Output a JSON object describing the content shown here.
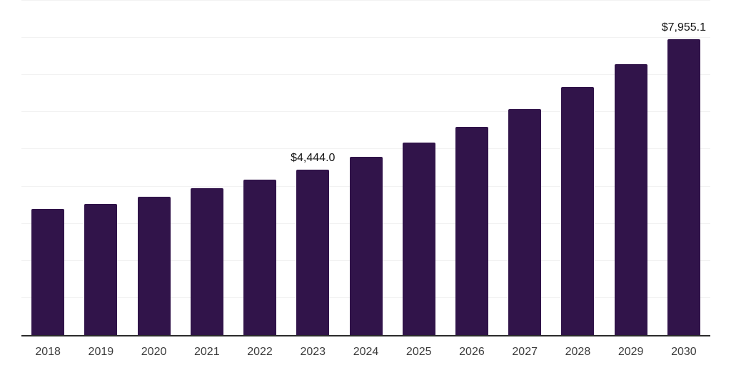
{
  "chart_data": {
    "type": "bar",
    "title": "",
    "xlabel": "",
    "ylabel": "",
    "categories": [
      "2018",
      "2019",
      "2020",
      "2021",
      "2022",
      "2023",
      "2024",
      "2025",
      "2026",
      "2027",
      "2028",
      "2029",
      "2030"
    ],
    "values": [
      3390,
      3525,
      3730,
      3950,
      4180,
      4444.0,
      4790,
      5185,
      5600,
      6080,
      6680,
      7290,
      7955.1
    ],
    "value_labels": [
      {
        "category": "2023",
        "text": "$4,444.0"
      },
      {
        "category": "2030",
        "text": "$7,955.1"
      }
    ],
    "ylim": [
      0,
      9000
    ],
    "grid_interval": 1000,
    "grid": "horizontal-only",
    "y_tick_labels_visible": false,
    "x_tick_labels_visible": true,
    "legend": "none",
    "colors": {
      "bar": "#31144A",
      "gridline": "#f2f2f2",
      "axis": "#2b2b2b",
      "value_label_text": "#141414",
      "tick_text": "#3d3d3d",
      "background": "#ffffff"
    }
  }
}
